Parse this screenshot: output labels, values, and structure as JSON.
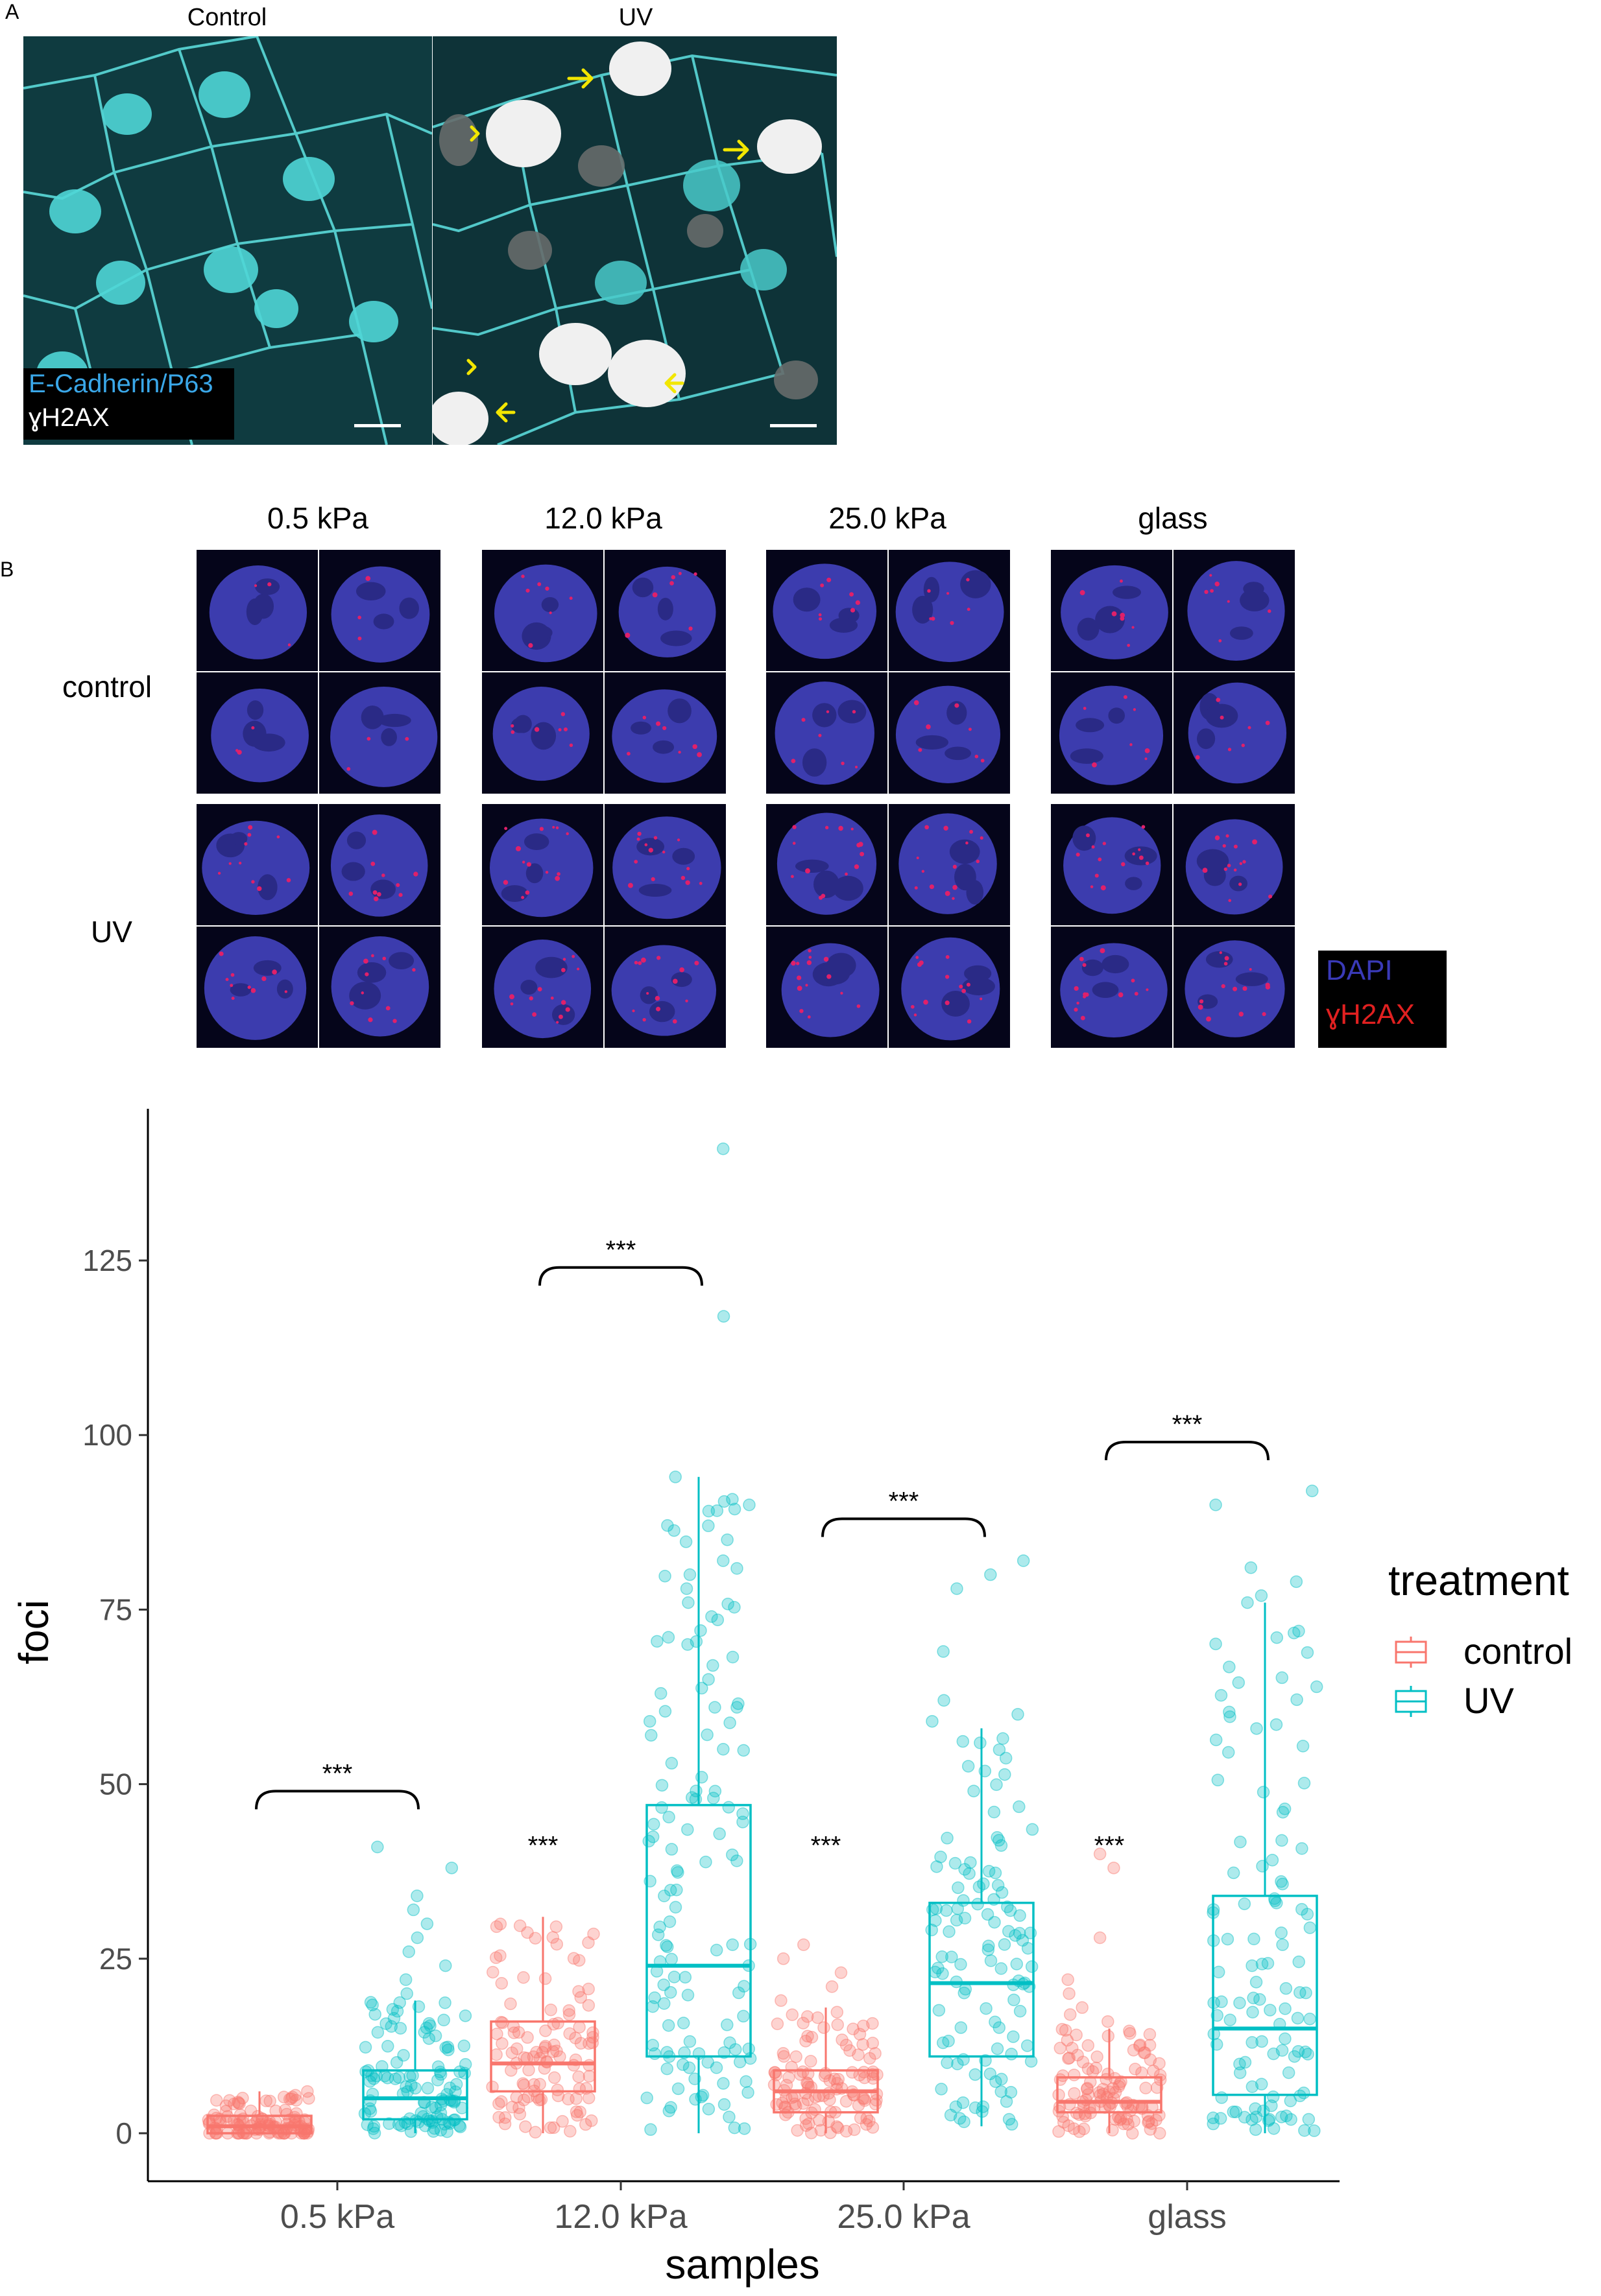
{
  "panel_a": {
    "letter": "A",
    "left_title": "Control",
    "right_title": "UV",
    "legend_line1": "E-Cadherin/P63",
    "legend_line2": "ɣH2AX",
    "colors": {
      "cyan": "#35c6c6",
      "white": "#ffffff",
      "arrow": "#f2e600",
      "legend_blue": "#3aa7e8"
    }
  },
  "panel_b": {
    "letter": "B",
    "columns": [
      "0.5 kPa",
      "12.0 kPa",
      "25.0 kPa",
      "glass"
    ],
    "rows": [
      "control",
      "UV"
    ],
    "legend_line1": "DAPI",
    "legend_line2": "ɣH2AX",
    "colors": {
      "dapi": "#3a3ab8",
      "gh2ax": "#e02020"
    }
  },
  "chart_data": {
    "type": "box",
    "xlabel": "samples",
    "ylabel": "foci",
    "categories": [
      "0.5 kPa",
      "12.0 kPa",
      "25.0 kPa",
      "glass"
    ],
    "ylim": [
      -5,
      147
    ],
    "yticks": [
      0,
      25,
      50,
      75,
      100,
      125
    ],
    "legend": {
      "title": "treatment",
      "position": "right",
      "entries": [
        "control",
        "UV"
      ]
    },
    "series": [
      {
        "name": "control",
        "color": "#f8766d",
        "boxes": [
          {
            "min": 0,
            "q1": 0,
            "median": 1,
            "q3": 2.5,
            "max": 6
          },
          {
            "min": 0,
            "q1": 6,
            "median": 10,
            "q3": 16,
            "max": 31
          },
          {
            "min": 0,
            "q1": 3,
            "median": 6,
            "q3": 9,
            "max": 18
          },
          {
            "min": 0,
            "q1": 3,
            "median": 4.5,
            "q3": 8,
            "max": 15
          }
        ]
      },
      {
        "name": "UV",
        "color": "#00bfc4",
        "boxes": [
          {
            "min": 0,
            "q1": 2,
            "median": 5,
            "q3": 9,
            "max": 19
          },
          {
            "min": 0,
            "q1": 11,
            "median": 24,
            "q3": 47,
            "max": 94
          },
          {
            "min": 1,
            "q1": 11,
            "median": 21.5,
            "q3": 33,
            "max": 58
          },
          {
            "min": 0,
            "q1": 5.5,
            "median": 15,
            "q3": 34,
            "max": 76
          }
        ]
      }
    ],
    "annotations": [
      {
        "text": "***",
        "type": "bracket",
        "category": 0,
        "y": 49
      },
      {
        "text": "***",
        "type": "bracket",
        "category": 1,
        "y": 124
      },
      {
        "text": "***",
        "type": "bracket",
        "category": 2,
        "y": 88
      },
      {
        "text": "***",
        "type": "bracket",
        "category": 3,
        "y": 99
      },
      {
        "text": "***",
        "type": "label",
        "category": 1,
        "y": 40
      },
      {
        "text": "***",
        "type": "label",
        "category": 2,
        "y": 40
      },
      {
        "text": "***",
        "type": "label",
        "category": 3,
        "y": 40
      }
    ],
    "outliers": [
      {
        "series": "UV",
        "category": 0,
        "values": [
          41,
          38,
          34,
          32,
          30,
          28,
          26,
          24,
          22,
          20
        ]
      },
      {
        "series": "UV",
        "category": 1,
        "values": [
          141,
          117,
          94,
          90,
          87,
          85,
          82,
          80,
          78,
          76,
          74,
          72,
          70,
          67,
          65,
          63,
          61,
          59,
          57,
          55,
          53,
          51,
          49,
          48
        ]
      },
      {
        "series": "UV",
        "category": 2,
        "values": [
          82,
          80,
          78,
          69,
          62,
          60,
          59
        ]
      },
      {
        "series": "UV",
        "category": 3,
        "values": [
          92,
          90,
          81,
          79,
          77,
          76
        ]
      },
      {
        "series": "control",
        "category": 1,
        "values": []
      },
      {
        "series": "control",
        "category": 2,
        "values": [
          27,
          25,
          23,
          21,
          19
        ]
      },
      {
        "series": "control",
        "category": 3,
        "values": [
          40,
          38,
          28,
          22,
          20,
          18,
          17,
          16
        ]
      }
    ]
  }
}
